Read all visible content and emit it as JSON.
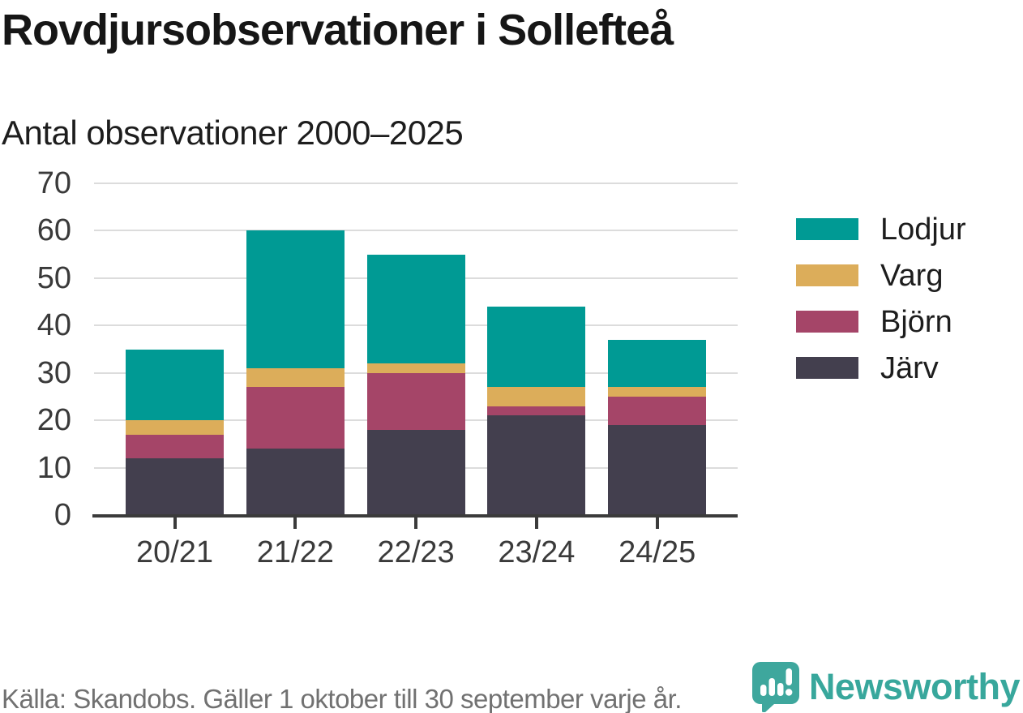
{
  "chart_data": {
    "type": "bar",
    "stacked": true,
    "title": "Rovdjursobservationer i Sollefteå",
    "subtitle": "Antal observationer 2000–2025",
    "categories": [
      "20/21",
      "21/22",
      "22/23",
      "23/24",
      "24/25"
    ],
    "series": [
      {
        "name": "Järv",
        "color": "#433f4e",
        "values": [
          12,
          14,
          18,
          21,
          19
        ]
      },
      {
        "name": "Björn",
        "color": "#a54568",
        "values": [
          5,
          13,
          12,
          2,
          6
        ]
      },
      {
        "name": "Varg",
        "color": "#dcad5a",
        "values": [
          3,
          4,
          2,
          4,
          2
        ]
      },
      {
        "name": "Lodjur",
        "color": "#009a94",
        "values": [
          15,
          29,
          23,
          17,
          10
        ]
      }
    ],
    "ylim": [
      0,
      70
    ],
    "yticks": [
      0,
      10,
      20,
      30,
      40,
      50,
      60,
      70
    ],
    "grid": true,
    "legend_position": "right",
    "legend_order": [
      "Lodjur",
      "Varg",
      "Björn",
      "Järv"
    ],
    "grid_color": "#dcdcdc",
    "axis_color": "#3b3b3b"
  },
  "footer": {
    "source": "Källa: Skandobs. Gäller 1 oktober till 30 september varje år.",
    "brand": "Newsworthy",
    "brand_color": "#38a79c"
  }
}
